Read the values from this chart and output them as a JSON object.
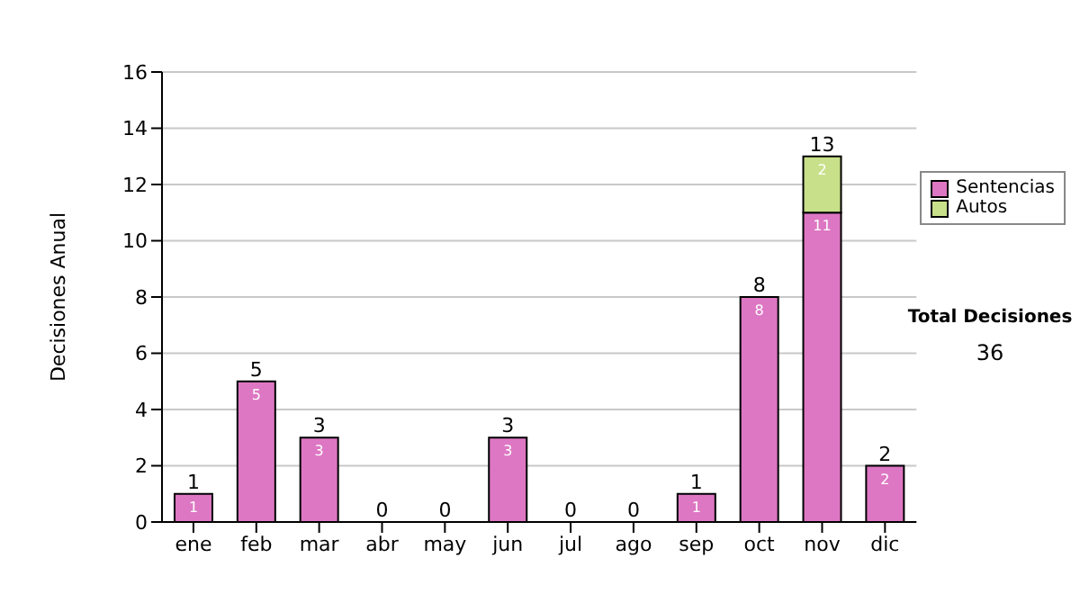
{
  "chart_data": {
    "type": "bar",
    "ylabel": "Decisiones Anual",
    "categories": [
      "ene",
      "feb",
      "mar",
      "abr",
      "may",
      "jun",
      "jul",
      "ago",
      "sep",
      "oct",
      "nov",
      "dic"
    ],
    "series": [
      {
        "name": "Sentencias",
        "color": "#dd77c3",
        "values": [
          1,
          5,
          3,
          0,
          0,
          3,
          0,
          0,
          1,
          8,
          11,
          2
        ],
        "value_labels": [
          "1",
          "5",
          "3",
          null,
          null,
          "3",
          null,
          null,
          "1",
          "8",
          "11",
          "2"
        ]
      },
      {
        "name": "Autos",
        "color": "#c8e08a",
        "values": [
          0,
          0,
          0,
          0,
          0,
          0,
          0,
          0,
          0,
          0,
          2,
          0
        ],
        "value_labels": [
          null,
          null,
          null,
          null,
          null,
          null,
          null,
          null,
          null,
          null,
          "2",
          null
        ]
      }
    ],
    "stacked": true,
    "totals": [
      "1",
      "5",
      "3",
      "0",
      "0",
      "3",
      "0",
      "0",
      "1",
      "8",
      "13",
      "2"
    ],
    "ylim": [
      0,
      16
    ],
    "yticks": [
      0,
      2,
      4,
      6,
      8,
      10,
      12,
      14,
      16
    ],
    "grid": "y",
    "legend": "right",
    "annotations": [
      "Total Decisiones",
      "36"
    ]
  }
}
